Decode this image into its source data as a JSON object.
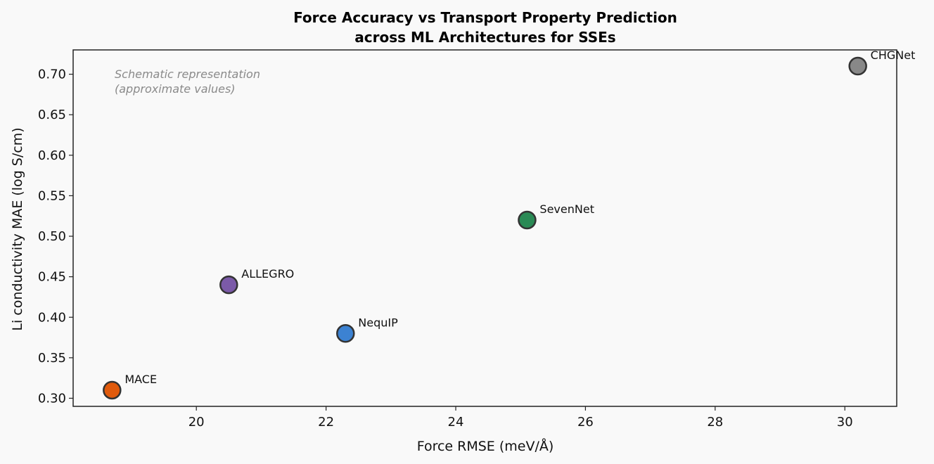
{
  "chart_data": {
    "type": "scatter",
    "title_line1": "Force Accuracy vs Transport Property Prediction",
    "title_line2": "across ML Architectures for SSEs",
    "xlabel": "Force RMSE (meV/Å)",
    "ylabel": "Li conductivity MAE (log S/cm)",
    "xlim": [
      18.1,
      30.8
    ],
    "ylim": [
      0.29,
      0.73
    ],
    "x_ticks": [
      20,
      22,
      24,
      26,
      28,
      30
    ],
    "x_tick_labels": [
      "20",
      "22",
      "24",
      "26",
      "28",
      "30"
    ],
    "y_ticks": [
      0.3,
      0.35,
      0.4,
      0.45,
      0.5,
      0.55,
      0.6,
      0.65,
      0.7
    ],
    "y_tick_labels": [
      "0.30",
      "0.35",
      "0.40",
      "0.45",
      "0.50",
      "0.55",
      "0.60",
      "0.65",
      "0.70"
    ],
    "grid": false,
    "annotation_line1": "Schematic representation",
    "annotation_line2": "(approximate values)",
    "points": [
      {
        "label": "MACE",
        "x": 18.7,
        "y": 0.31,
        "color": "#e05a0c"
      },
      {
        "label": "ALLEGRO",
        "x": 20.5,
        "y": 0.44,
        "color": "#7b5aa8"
      },
      {
        "label": "NequIP",
        "x": 22.3,
        "y": 0.38,
        "color": "#3c82d2"
      },
      {
        "label": "SevenNet",
        "x": 25.1,
        "y": 0.52,
        "color": "#2a8a55"
      },
      {
        "label": "CHGNet",
        "x": 30.2,
        "y": 0.71,
        "color": "#888888"
      }
    ]
  }
}
